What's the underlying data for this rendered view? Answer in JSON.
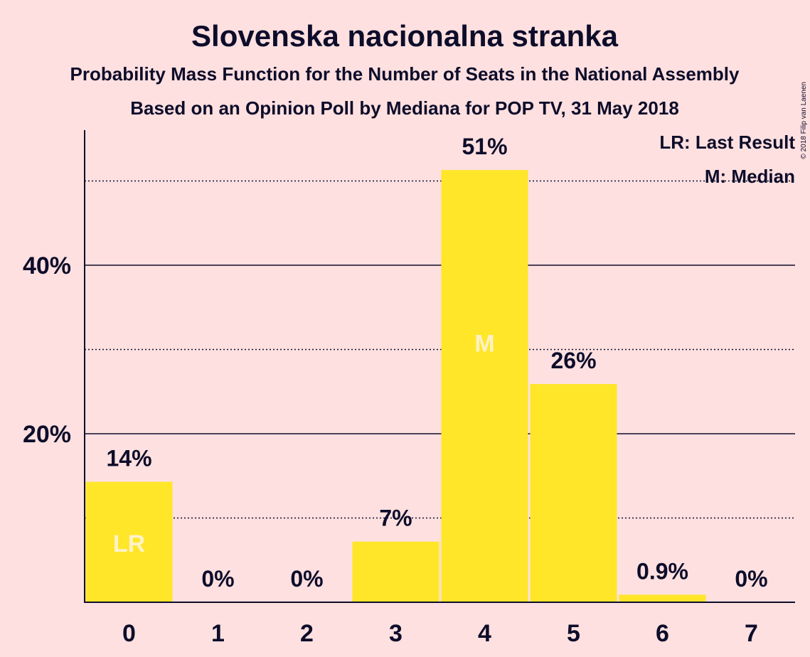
{
  "title": "Slovenska nacionalna stranka",
  "subtitle1": "Probability Mass Function for the Number of Seats in the National Assembly",
  "subtitle2": "Based on an Opinion Poll by Mediana for POP TV, 31 May 2018",
  "copyright": "© 2018 Filip van Laenen",
  "legend": {
    "last_result": "LR: Last Result",
    "median": "M: Median"
  },
  "colors": {
    "background": "#FFE0E0",
    "bar": "#FFE629",
    "text": "#0D0D2A",
    "marker_text": "#FFF2C8"
  },
  "chart_data": {
    "type": "bar",
    "title": "Slovenska nacionalna stranka",
    "subtitle": "Probability Mass Function for the Number of Seats in the National Assembly",
    "categories": [
      "0",
      "1",
      "2",
      "3",
      "4",
      "5",
      "6",
      "7"
    ],
    "values": [
      14.3,
      0,
      0,
      7.2,
      51.3,
      25.9,
      0.9,
      0
    ],
    "value_labels": [
      "14%",
      "0%",
      "0%",
      "7%",
      "51%",
      "26%",
      "0.9%",
      "0%"
    ],
    "markers": {
      "0": "LR",
      "4": "M"
    },
    "ylim": [
      0,
      56
    ],
    "yticks": [
      20,
      40
    ],
    "ytick_labels": [
      "20%",
      "40%"
    ],
    "minor_gridlines": [
      10,
      30,
      50
    ],
    "legend_position": "top-right",
    "grid": true
  }
}
